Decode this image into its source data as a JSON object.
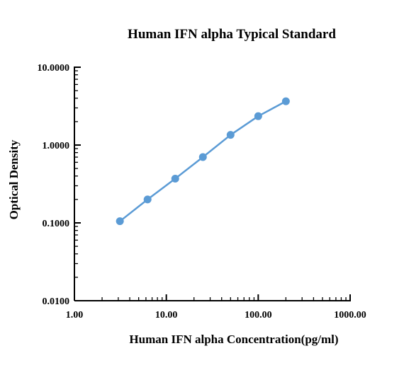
{
  "chart_data": {
    "type": "line",
    "title": "Human IFN alpha Typical Standard",
    "xlabel": "Human IFN alpha  Concentration(pg/ml)",
    "ylabel": "Optical Density",
    "x_scale": "log",
    "y_scale": "log",
    "xlim": [
      1,
      1000
    ],
    "ylim": [
      0.01,
      10
    ],
    "x_tick_labels": [
      "1.00",
      "10.00",
      "100.00",
      "1000.00"
    ],
    "y_tick_labels": [
      "0.0100",
      "0.1000",
      "1.0000",
      "10.0000"
    ],
    "grid": false,
    "series": [
      {
        "x": [
          3.125,
          6.25,
          12.5,
          25,
          50,
          100,
          200
        ],
        "y": [
          0.105,
          0.2,
          0.37,
          0.7,
          1.35,
          2.35,
          3.65
        ]
      }
    ],
    "colors": {
      "series": "#5b9bd5",
      "axis": "#000000"
    }
  }
}
